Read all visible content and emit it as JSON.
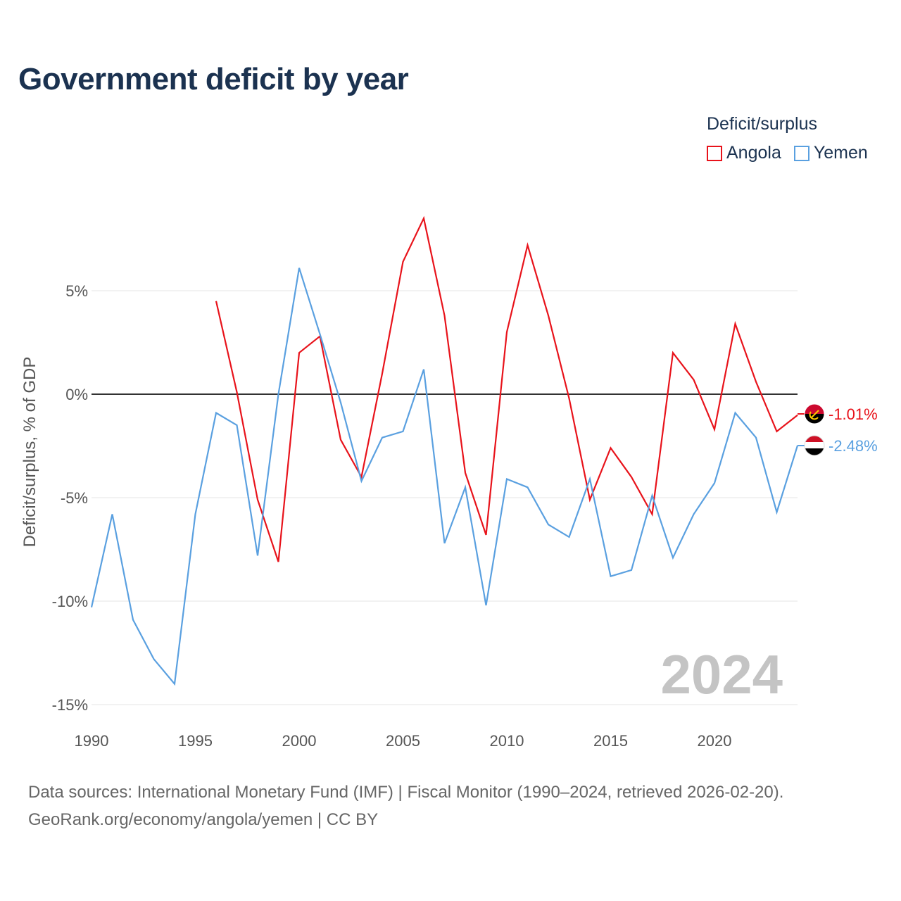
{
  "title": "Government deficit by year",
  "legend": {
    "title": "Deficit/surplus",
    "items": [
      {
        "name": "Angola",
        "color": "#e8131b"
      },
      {
        "name": "Yemen",
        "color": "#5aa0e0"
      }
    ]
  },
  "current_year": "2024",
  "footer": {
    "sources": "Data sources: International Monetary Fund (IMF) | Fiscal Monitor (1990–2024, retrieved 2026-02-20).",
    "url": "GeoRank.org/economy/angola/yemen | CC BY"
  },
  "chart_data": {
    "type": "line",
    "title": "Government deficit by year",
    "xlabel": "",
    "ylabel": "Deficit/surplus, % of GDP",
    "xlim": [
      1990,
      2024
    ],
    "ylim": [
      -15,
      8.5
    ],
    "x_ticks": [
      1990,
      1995,
      2000,
      2005,
      2010,
      2015,
      2020
    ],
    "y_ticks": [
      {
        "value": 5,
        "label": "5%"
      },
      {
        "value": 0,
        "label": "0%"
      },
      {
        "value": -5,
        "label": "-5%"
      },
      {
        "value": -10,
        "label": "-10%"
      },
      {
        "value": -15,
        "label": "-15%"
      }
    ],
    "legend_position": "top-right",
    "series": [
      {
        "name": "Angola",
        "color": "#e8131b",
        "end_label": "-1.01%",
        "points": [
          [
            1996,
            4.5
          ],
          [
            1997,
            0.1
          ],
          [
            1998,
            -5.1
          ],
          [
            1999,
            -8.1
          ],
          [
            2000,
            2.0
          ],
          [
            2001,
            2.8
          ],
          [
            2002,
            -2.2
          ],
          [
            2003,
            -4.0
          ],
          [
            2004,
            1.0
          ],
          [
            2005,
            6.4
          ],
          [
            2006,
            8.5
          ],
          [
            2007,
            3.8
          ],
          [
            2008,
            -3.8
          ],
          [
            2009,
            -6.8
          ],
          [
            2010,
            3.0
          ],
          [
            2011,
            7.2
          ],
          [
            2012,
            3.8
          ],
          [
            2013,
            -0.2
          ],
          [
            2014,
            -5.1
          ],
          [
            2015,
            -2.6
          ],
          [
            2016,
            -4.0
          ],
          [
            2017,
            -5.8
          ],
          [
            2018,
            2.0
          ],
          [
            2019,
            0.7
          ],
          [
            2020,
            -1.7
          ],
          [
            2021,
            3.4
          ],
          [
            2022,
            0.6
          ],
          [
            2023,
            -1.8
          ],
          [
            2024,
            -1.01
          ]
        ]
      },
      {
        "name": "Yemen",
        "color": "#5aa0e0",
        "end_label": "-2.48%",
        "points": [
          [
            1990,
            -10.3
          ],
          [
            1991,
            -5.8
          ],
          [
            1992,
            -10.9
          ],
          [
            1993,
            -12.8
          ],
          [
            1994,
            -14.0
          ],
          [
            1995,
            -5.8
          ],
          [
            1996,
            -0.9
          ],
          [
            1997,
            -1.5
          ],
          [
            1998,
            -7.8
          ],
          [
            1999,
            0.0
          ],
          [
            2000,
            6.1
          ],
          [
            2001,
            2.9
          ],
          [
            2002,
            -0.4
          ],
          [
            2003,
            -4.2
          ],
          [
            2004,
            -2.1
          ],
          [
            2005,
            -1.8
          ],
          [
            2006,
            1.2
          ],
          [
            2007,
            -7.2
          ],
          [
            2008,
            -4.5
          ],
          [
            2009,
            -10.2
          ],
          [
            2010,
            -4.1
          ],
          [
            2011,
            -4.5
          ],
          [
            2012,
            -6.3
          ],
          [
            2013,
            -6.9
          ],
          [
            2014,
            -4.1
          ],
          [
            2015,
            -8.8
          ],
          [
            2016,
            -8.5
          ],
          [
            2017,
            -4.9
          ],
          [
            2018,
            -7.9
          ],
          [
            2019,
            -5.8
          ],
          [
            2020,
            -4.3
          ],
          [
            2021,
            -0.9
          ],
          [
            2022,
            -2.1
          ],
          [
            2023,
            -5.7
          ],
          [
            2024,
            -2.48
          ]
        ]
      }
    ]
  }
}
